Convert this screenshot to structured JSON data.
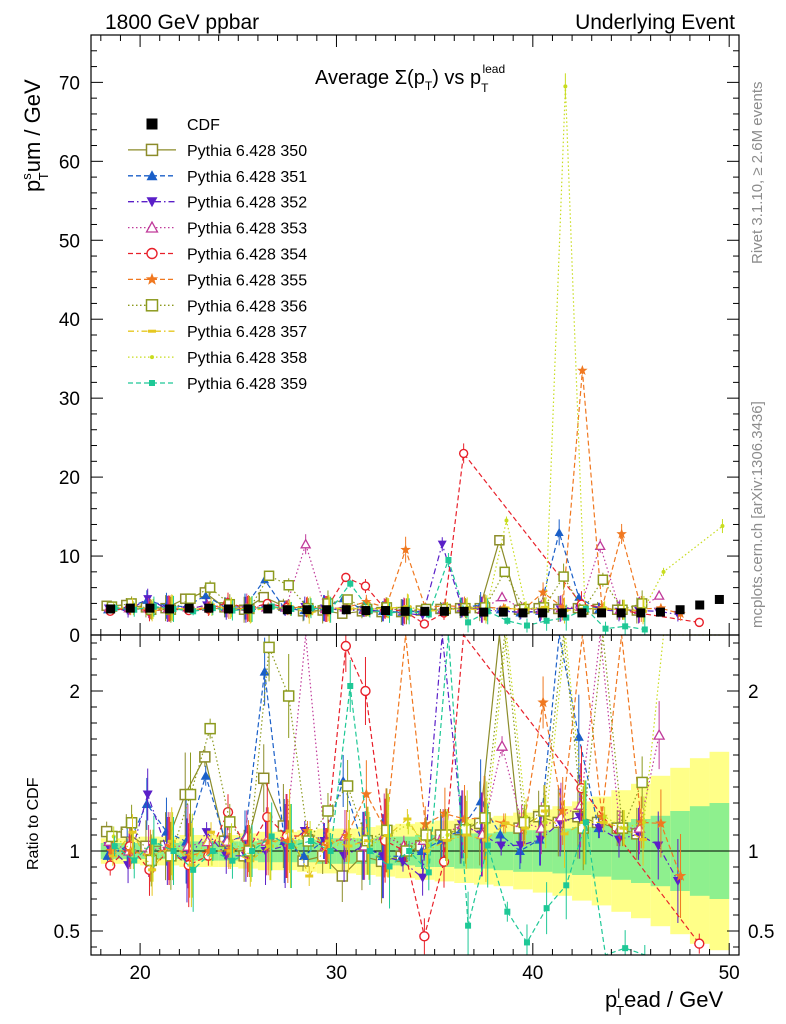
{
  "header": {
    "left": "1800 GeV ppbar",
    "right": "Underlying Event"
  },
  "side_labels": {
    "top": "Rivet 3.1.10, ≥ 2.6M events",
    "bottom": "mcplots.cern.ch [arXiv:1306.3436]"
  },
  "plot_title": {
    "main": "Average Σ(p",
    "sub": "T",
    "mid": ") vs p",
    "sub2": "T",
    "sup2": "lead"
  },
  "axes": {
    "ylabel_main": {
      "base": "p",
      "sup": "s",
      "sub": "T",
      "rest": "um / GeV"
    },
    "ylabel_ratio": "Ratio to CDF",
    "xlabel": {
      "base": "p",
      "sup": "l",
      "sub": "T",
      "rest": "ead / GeV"
    },
    "xlim": [
      17.5,
      50.5
    ],
    "ylim_main": [
      0,
      76
    ],
    "ylim_ratio": [
      0.35,
      2.35
    ],
    "x_ticks": [
      20,
      30,
      40,
      50
    ],
    "y_ticks_main": [
      0,
      10,
      20,
      30,
      40,
      50,
      60,
      70
    ],
    "y_ticks_ratio": [
      0.5,
      1,
      2
    ],
    "y_ticks_ratio_labels": [
      "0.5",
      "1",
      "2"
    ]
  },
  "legend": [
    {
      "label": "CDF",
      "color": "#000000",
      "marker": "square-filled",
      "dash": "none"
    },
    {
      "label": "Pythia 6.428 350",
      "color": "#8c8c2a",
      "marker": "square-open",
      "dash": "solid"
    },
    {
      "label": "Pythia 6.428 351",
      "color": "#1a5fc8",
      "marker": "triangle-up-filled",
      "dash": "dashed"
    },
    {
      "label": "Pythia 6.428 352",
      "color": "#5a1fc8",
      "marker": "triangle-down-filled",
      "dash": "dashdot"
    },
    {
      "label": "Pythia 6.428 353",
      "color": "#c03a9a",
      "marker": "triangle-up-open",
      "dash": "dotted"
    },
    {
      "label": "Pythia 6.428 354",
      "color": "#e8202a",
      "marker": "circle-open",
      "dash": "dashed"
    },
    {
      "label": "Pythia 6.428 355",
      "color": "#f07820",
      "marker": "star",
      "dash": "dashed"
    },
    {
      "label": "Pythia 6.428 356",
      "color": "#8c9a1e",
      "marker": "square-open",
      "dash": "dotted"
    },
    {
      "label": "Pythia 6.428 357",
      "color": "#e6c820",
      "marker": "dash",
      "dash": "dashdot"
    },
    {
      "label": "Pythia 6.428 358",
      "color": "#c8dc1e",
      "marker": "dot",
      "dash": "dotted"
    },
    {
      "label": "Pythia 6.428 359",
      "color": "#1ec896",
      "marker": "square-filled-small",
      "dash": "dashed"
    }
  ],
  "chart_data": {
    "type": "scatter",
    "x": [
      18.5,
      19.5,
      20.5,
      21.5,
      22.5,
      23.5,
      24.5,
      25.5,
      26.5,
      27.5,
      28.5,
      29.5,
      30.5,
      31.5,
      32.5,
      33.5,
      34.5,
      35.5,
      36.5,
      37.5,
      38.5,
      39.5,
      40.5,
      41.5,
      42.5,
      43.5,
      44.5,
      45.5,
      46.5,
      47.5,
      48.5,
      49.5
    ],
    "cdf": [
      3.3,
      3.4,
      3.4,
      3.3,
      3.4,
      3.4,
      3.3,
      3.3,
      3.3,
      3.2,
      3.2,
      3.2,
      3.2,
      3.1,
      3.1,
      3.0,
      3.0,
      3.0,
      3.0,
      2.9,
      2.9,
      2.8,
      2.8,
      2.8,
      2.8,
      2.8,
      2.8,
      2.8,
      2.9,
      3.2,
      3.8,
      4.5
    ],
    "band_inner": [
      0.05,
      0.05,
      0.05,
      0.05,
      0.06,
      0.06,
      0.06,
      0.06,
      0.07,
      0.07,
      0.07,
      0.08,
      0.08,
      0.08,
      0.09,
      0.09,
      0.1,
      0.1,
      0.11,
      0.11,
      0.12,
      0.13,
      0.13,
      0.14,
      0.15,
      0.16,
      0.18,
      0.2,
      0.22,
      0.25,
      0.28,
      0.3
    ],
    "band_outer": [
      0.08,
      0.08,
      0.09,
      0.09,
      0.1,
      0.1,
      0.1,
      0.11,
      0.12,
      0.12,
      0.13,
      0.14,
      0.14,
      0.15,
      0.16,
      0.17,
      0.18,
      0.19,
      0.2,
      0.21,
      0.22,
      0.24,
      0.26,
      0.28,
      0.31,
      0.34,
      0.38,
      0.42,
      0.47,
      0.52,
      0.58,
      0.62
    ],
    "series": [
      {
        "values": [
          3.7,
          3.8,
          3.5,
          3.4,
          4.6,
          5.4,
          3.5,
          3.2,
          4.8,
          3.7,
          3.0,
          3.1,
          2.7,
          3.0,
          2.9,
          2.9,
          3.1,
          3.3,
          3.4,
          3.4,
          12.0,
          3.2,
          3.4,
          3.3,
          3.4,
          3.3,
          3.2,
          3.1,
          null,
          null,
          null,
          null
        ]
      },
      {
        "values": [
          3.2,
          3.5,
          4.4,
          3.7,
          3.6,
          5.0,
          3.5,
          3.6,
          7.0,
          3.4,
          3.1,
          3.4,
          4.6,
          3.2,
          3.0,
          2.9,
          3.0,
          3.2,
          3.4,
          3.8,
          3.2,
          2.8,
          3.0,
          13.0,
          4.8,
          3.2,
          null,
          null,
          null,
          null,
          null,
          null
        ]
      },
      {
        "values": [
          3.4,
          3.1,
          4.6,
          3.3,
          3.2,
          3.8,
          3.2,
          3.2,
          3.3,
          3.3,
          3.6,
          3.4,
          3.1,
          3.2,
          3.0,
          2.8,
          2.5,
          11.5,
          3.5,
          3.2,
          3.0,
          2.9,
          3.0,
          3.3,
          3.4,
          3.2,
          3.0,
          3.1,
          3.0,
          2.6,
          null,
          null
        ]
      },
      {
        "values": [
          3.5,
          3.4,
          3.4,
          3.4,
          3.5,
          3.6,
          3.5,
          3.6,
          3.5,
          3.5,
          11.5,
          3.3,
          3.5,
          3.2,
          3.4,
          3.1,
          3.2,
          3.3,
          3.5,
          3.2,
          4.8,
          3.3,
          3.2,
          3.4,
          3.6,
          11.3,
          3.2,
          3.2,
          5.0,
          null,
          null,
          null
        ]
      },
      {
        "values": [
          3.0,
          3.5,
          3.0,
          3.3,
          3.1,
          3.3,
          4.1,
          3.3,
          4.0,
          3.5,
          3.5,
          3.3,
          7.3,
          6.2,
          3.3,
          3.0,
          1.4,
          2.8,
          23.0,
          null,
          null,
          null,
          null,
          null,
          3.9,
          null,
          null,
          null,
          null,
          null,
          1.6,
          null
        ]
      },
      {
        "values": [
          3.3,
          3.4,
          3.3,
          3.4,
          3.3,
          3.4,
          3.3,
          3.4,
          3.5,
          3.4,
          3.6,
          3.3,
          3.5,
          4.2,
          3.5,
          10.8,
          3.5,
          3.7,
          3.6,
          3.5,
          3.4,
          3.2,
          5.4,
          3.5,
          33.5,
          3.4,
          12.8,
          3.3,
          3.4,
          2.7,
          null,
          null
        ]
      },
      {
        "values": [
          3.6,
          4.0,
          3.2,
          3.2,
          4.6,
          6.0,
          3.9,
          3.3,
          7.5,
          6.3,
          3.4,
          4.0,
          4.5,
          3.3,
          3.5,
          3.0,
          3.3,
          3.3,
          3.4,
          3.5,
          8.0,
          3.3,
          3.5,
          7.4,
          3.2,
          7.0,
          3.2,
          4.0,
          null,
          null,
          null,
          null
        ]
      },
      {
        "values": [
          3.2,
          3.8,
          3.0,
          3.5,
          3.1,
          3.8,
          3.3,
          3.1,
          3.4,
          3.6,
          2.7,
          3.4,
          3.3,
          3.3,
          3.4,
          3.6,
          3.0,
          3.2,
          3.3,
          3.1,
          3.4,
          3.2,
          3.5,
          3.1,
          3.3,
          3.3,
          3.2,
          3.0,
          null,
          null,
          null,
          null
        ]
      },
      {
        "values": [
          3.6,
          3.4,
          3.3,
          3.4,
          3.3,
          3.3,
          3.5,
          3.2,
          3.4,
          3.3,
          3.6,
          3.2,
          3.5,
          3.2,
          3.4,
          3.5,
          3.1,
          3.3,
          3.5,
          3.4,
          14.5,
          3.4,
          3.3,
          69.5,
          3.3,
          3.4,
          3.2,
          3.3,
          8.0,
          null,
          null,
          13.8
        ]
      },
      {
        "values": [
          3.4,
          3.2,
          3.6,
          3.3,
          3.0,
          3.4,
          3.1,
          3.3,
          3.6,
          3.3,
          3.4,
          3.2,
          6.5,
          3.1,
          2.8,
          3.0,
          2.6,
          9.5,
          1.6,
          3.0,
          1.8,
          1.2,
          1.8,
          2.2,
          3.3,
          0.8,
          1.1,
          0.7,
          null,
          null,
          null,
          null
        ]
      }
    ]
  }
}
